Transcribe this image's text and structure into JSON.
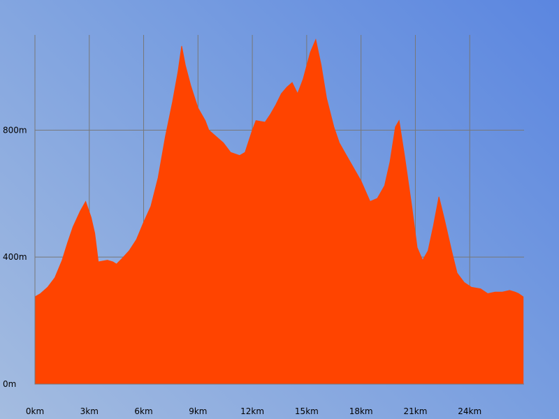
{
  "chart_data": {
    "type": "area",
    "title": "",
    "xlabel": "",
    "ylabel": "",
    "x_unit": "km",
    "y_unit": "m",
    "xlim": [
      0,
      27
    ],
    "ylim": [
      0,
      1100
    ],
    "grid": true,
    "legend": "none",
    "fill_color": "#ff4400",
    "grid_color": "#777777",
    "x_ticks": [
      {
        "value": 0,
        "label": "0km"
      },
      {
        "value": 3,
        "label": "3km"
      },
      {
        "value": 6,
        "label": "6km"
      },
      {
        "value": 9,
        "label": "9km"
      },
      {
        "value": 12,
        "label": "12km"
      },
      {
        "value": 15,
        "label": "15km"
      },
      {
        "value": 18,
        "label": "18km"
      },
      {
        "value": 21,
        "label": "21km"
      },
      {
        "value": 24,
        "label": "24km"
      }
    ],
    "y_ticks": [
      {
        "value": 0,
        "label": "0m"
      },
      {
        "value": 400,
        "label": "400m"
      },
      {
        "value": 800,
        "label": "800m"
      }
    ],
    "x": [
      0,
      0.3,
      0.7,
      1.1,
      1.5,
      1.8,
      2.1,
      2.5,
      2.8,
      3.1,
      3.3,
      3.5,
      4.0,
      4.3,
      4.5,
      4.8,
      5.2,
      5.6,
      6.0,
      6.4,
      6.8,
      7.2,
      7.6,
      7.9,
      8.1,
      8.3,
      8.6,
      9.0,
      9.4,
      9.6,
      10.0,
      10.4,
      10.8,
      11.3,
      11.6,
      12.0,
      12.2,
      12.7,
      13.0,
      13.3,
      13.6,
      13.9,
      14.2,
      14.5,
      14.8,
      15.2,
      15.5,
      15.8,
      16.1,
      16.5,
      16.8,
      17.2,
      17.6,
      18.0,
      18.5,
      18.9,
      19.3,
      19.6,
      19.9,
      20.1,
      20.4,
      20.8,
      21.1,
      21.4,
      21.7,
      22.0,
      22.3,
      22.6,
      23.0,
      23.3,
      23.7,
      24.1,
      24.6,
      25.0,
      25.4,
      25.8,
      26.2,
      26.5,
      26.7,
      26.95
    ],
    "y": [
      275,
      285,
      305,
      335,
      390,
      445,
      495,
      545,
      575,
      525,
      475,
      385,
      390,
      385,
      378,
      395,
      420,
      455,
      510,
      560,
      650,
      780,
      890,
      985,
      1065,
      1005,
      940,
      870,
      830,
      800,
      780,
      760,
      730,
      720,
      730,
      800,
      830,
      825,
      850,
      880,
      915,
      935,
      950,
      915,
      960,
      1045,
      1085,
      1005,
      900,
      810,
      760,
      720,
      680,
      640,
      575,
      585,
      625,
      700,
      810,
      830,
      720,
      560,
      430,
      390,
      420,
      500,
      590,
      520,
      420,
      350,
      320,
      305,
      300,
      285,
      290,
      290,
      295,
      290,
      285,
      275
    ]
  }
}
